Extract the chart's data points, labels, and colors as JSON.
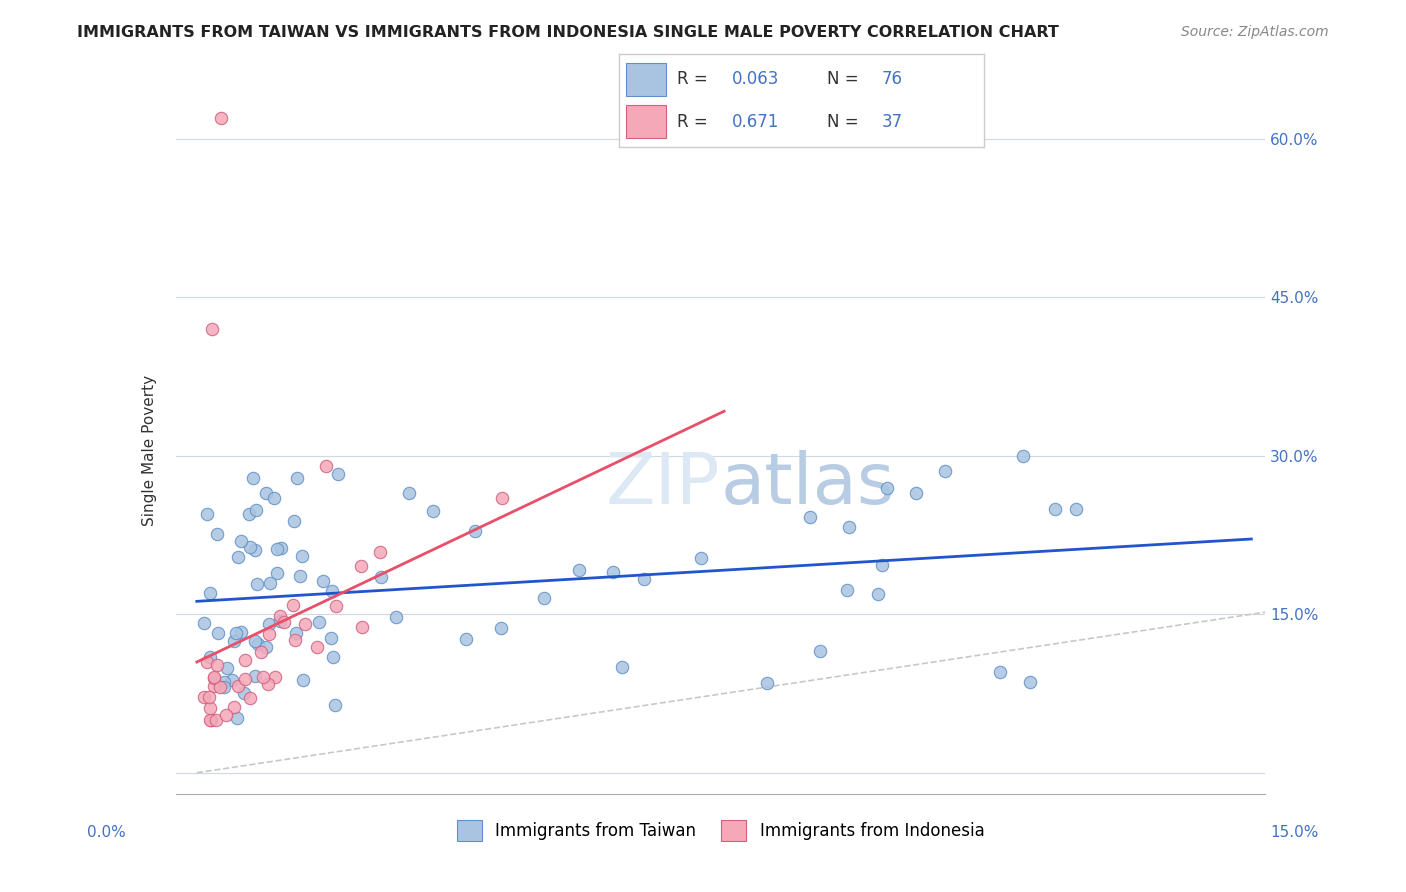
{
  "title": "IMMIGRANTS FROM TAIWAN VS IMMIGRANTS FROM INDONESIA SINGLE MALE POVERTY CORRELATION CHART",
  "source": "Source: ZipAtlas.com",
  "ylabel": "Single Male Poverty",
  "xlim": [
    0.0,
    0.15
  ],
  "ylim": [
    -0.02,
    0.63
  ],
  "taiwan_R": 0.063,
  "taiwan_N": 76,
  "indonesia_R": 0.671,
  "indonesia_N": 37,
  "taiwan_color": "#a8c4e0",
  "taiwan_edge_color": "#6090c8",
  "indonesia_color": "#f4a8b8",
  "indonesia_edge_color": "#d06080",
  "taiwan_line_color": "#2255cc",
  "indonesia_line_color": "#e8506a",
  "diagonal_color": "#c8c8c8",
  "right_tick_color": "#4472c4",
  "bottom_legend_taiwan": "Immigrants from Taiwan",
  "bottom_legend_indonesia": "Immigrants from Indonesia",
  "right_yticks": [
    0.6,
    0.45,
    0.3,
    0.15
  ],
  "right_ytick_labels": [
    "60.0%",
    "45.0%",
    "30.0%",
    "15.0%"
  ]
}
